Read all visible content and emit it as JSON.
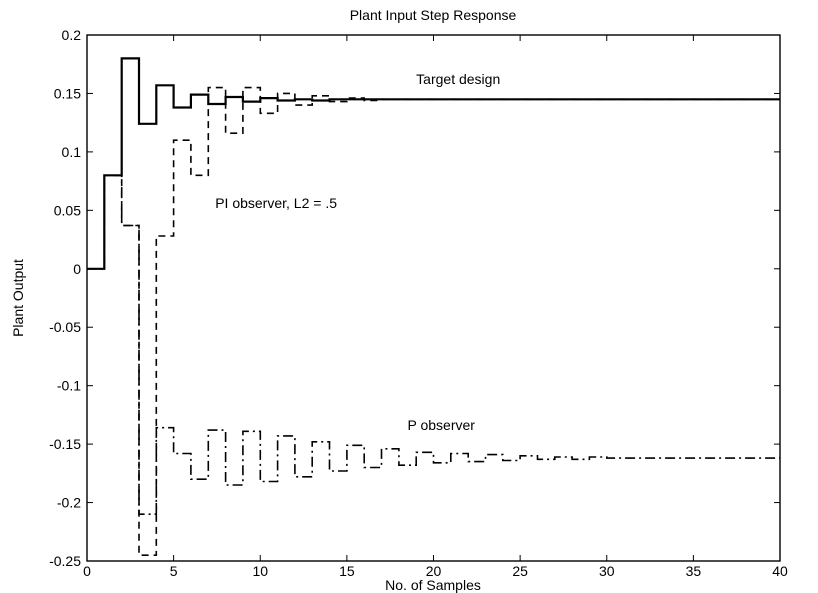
{
  "chart_data": {
    "type": "line",
    "title": "Plant Input Step Response",
    "xlabel": "No. of Samples",
    "ylabel": "Plant Output",
    "xlim": [
      0,
      40
    ],
    "ylim": [
      -0.25,
      0.2
    ],
    "grid": false,
    "legend": "none",
    "line_style": "stairs",
    "xticks": [
      "0",
      "5",
      "10",
      "15",
      "20",
      "25",
      "30",
      "35",
      "40"
    ],
    "yticks": [
      "-0.25",
      "-0.2",
      "-0.15",
      "-0.1",
      "-0.05",
      "0",
      "0.05",
      "0.1",
      "0.15",
      "0.2"
    ],
    "annotations": [
      {
        "text": "Target design",
        "x": 19,
        "y": 0.158
      },
      {
        "text": "PI observer, L2 = .5",
        "x": 7.4,
        "y": 0.052
      },
      {
        "text": "P observer",
        "x": 18.5,
        "y": -0.138
      }
    ],
    "series": [
      {
        "dash": "solid",
        "values": [
          0,
          0.08,
          0.18,
          0.124,
          0.157,
          0.138,
          0.149,
          0.141,
          0.147,
          0.143,
          0.146,
          0.144,
          0.145,
          0.144,
          0.145,
          0.145,
          0.145,
          0.145,
          0.145,
          0.145,
          0.145,
          0.145,
          0.145,
          0.145,
          0.145,
          0.145,
          0.145,
          0.145,
          0.145,
          0.145,
          0.145,
          0.145,
          0.145,
          0.145,
          0.145,
          0.145,
          0.145,
          0.145,
          0.145,
          0.145
        ]
      },
      {
        "dash": "dashed",
        "values": [
          0,
          0.08,
          0.037,
          -0.245,
          0.028,
          0.11,
          0.08,
          0.155,
          0.116,
          0.155,
          0.133,
          0.15,
          0.14,
          0.148,
          0.143,
          0.146,
          0.144,
          0.145,
          0.145,
          0.145,
          0.145,
          0.145,
          0.145,
          0.145,
          0.145,
          0.145,
          0.145,
          0.145,
          0.145,
          0.145,
          0.145,
          0.145,
          0.145,
          0.145,
          0.145,
          0.145,
          0.145,
          0.145,
          0.145,
          0.145
        ]
      },
      {
        "dash": "dashdot",
        "values": [
          0,
          0.08,
          0.037,
          -0.21,
          -0.136,
          -0.158,
          -0.18,
          -0.138,
          -0.185,
          -0.139,
          -0.182,
          -0.143,
          -0.178,
          -0.148,
          -0.173,
          -0.151,
          -0.17,
          -0.154,
          -0.168,
          -0.157,
          -0.166,
          -0.158,
          -0.165,
          -0.159,
          -0.164,
          -0.16,
          -0.163,
          -0.161,
          -0.163,
          -0.161,
          -0.162,
          -0.162,
          -0.162,
          -0.162,
          -0.162,
          -0.162,
          -0.162,
          -0.162,
          -0.162,
          -0.162
        ]
      }
    ]
  }
}
